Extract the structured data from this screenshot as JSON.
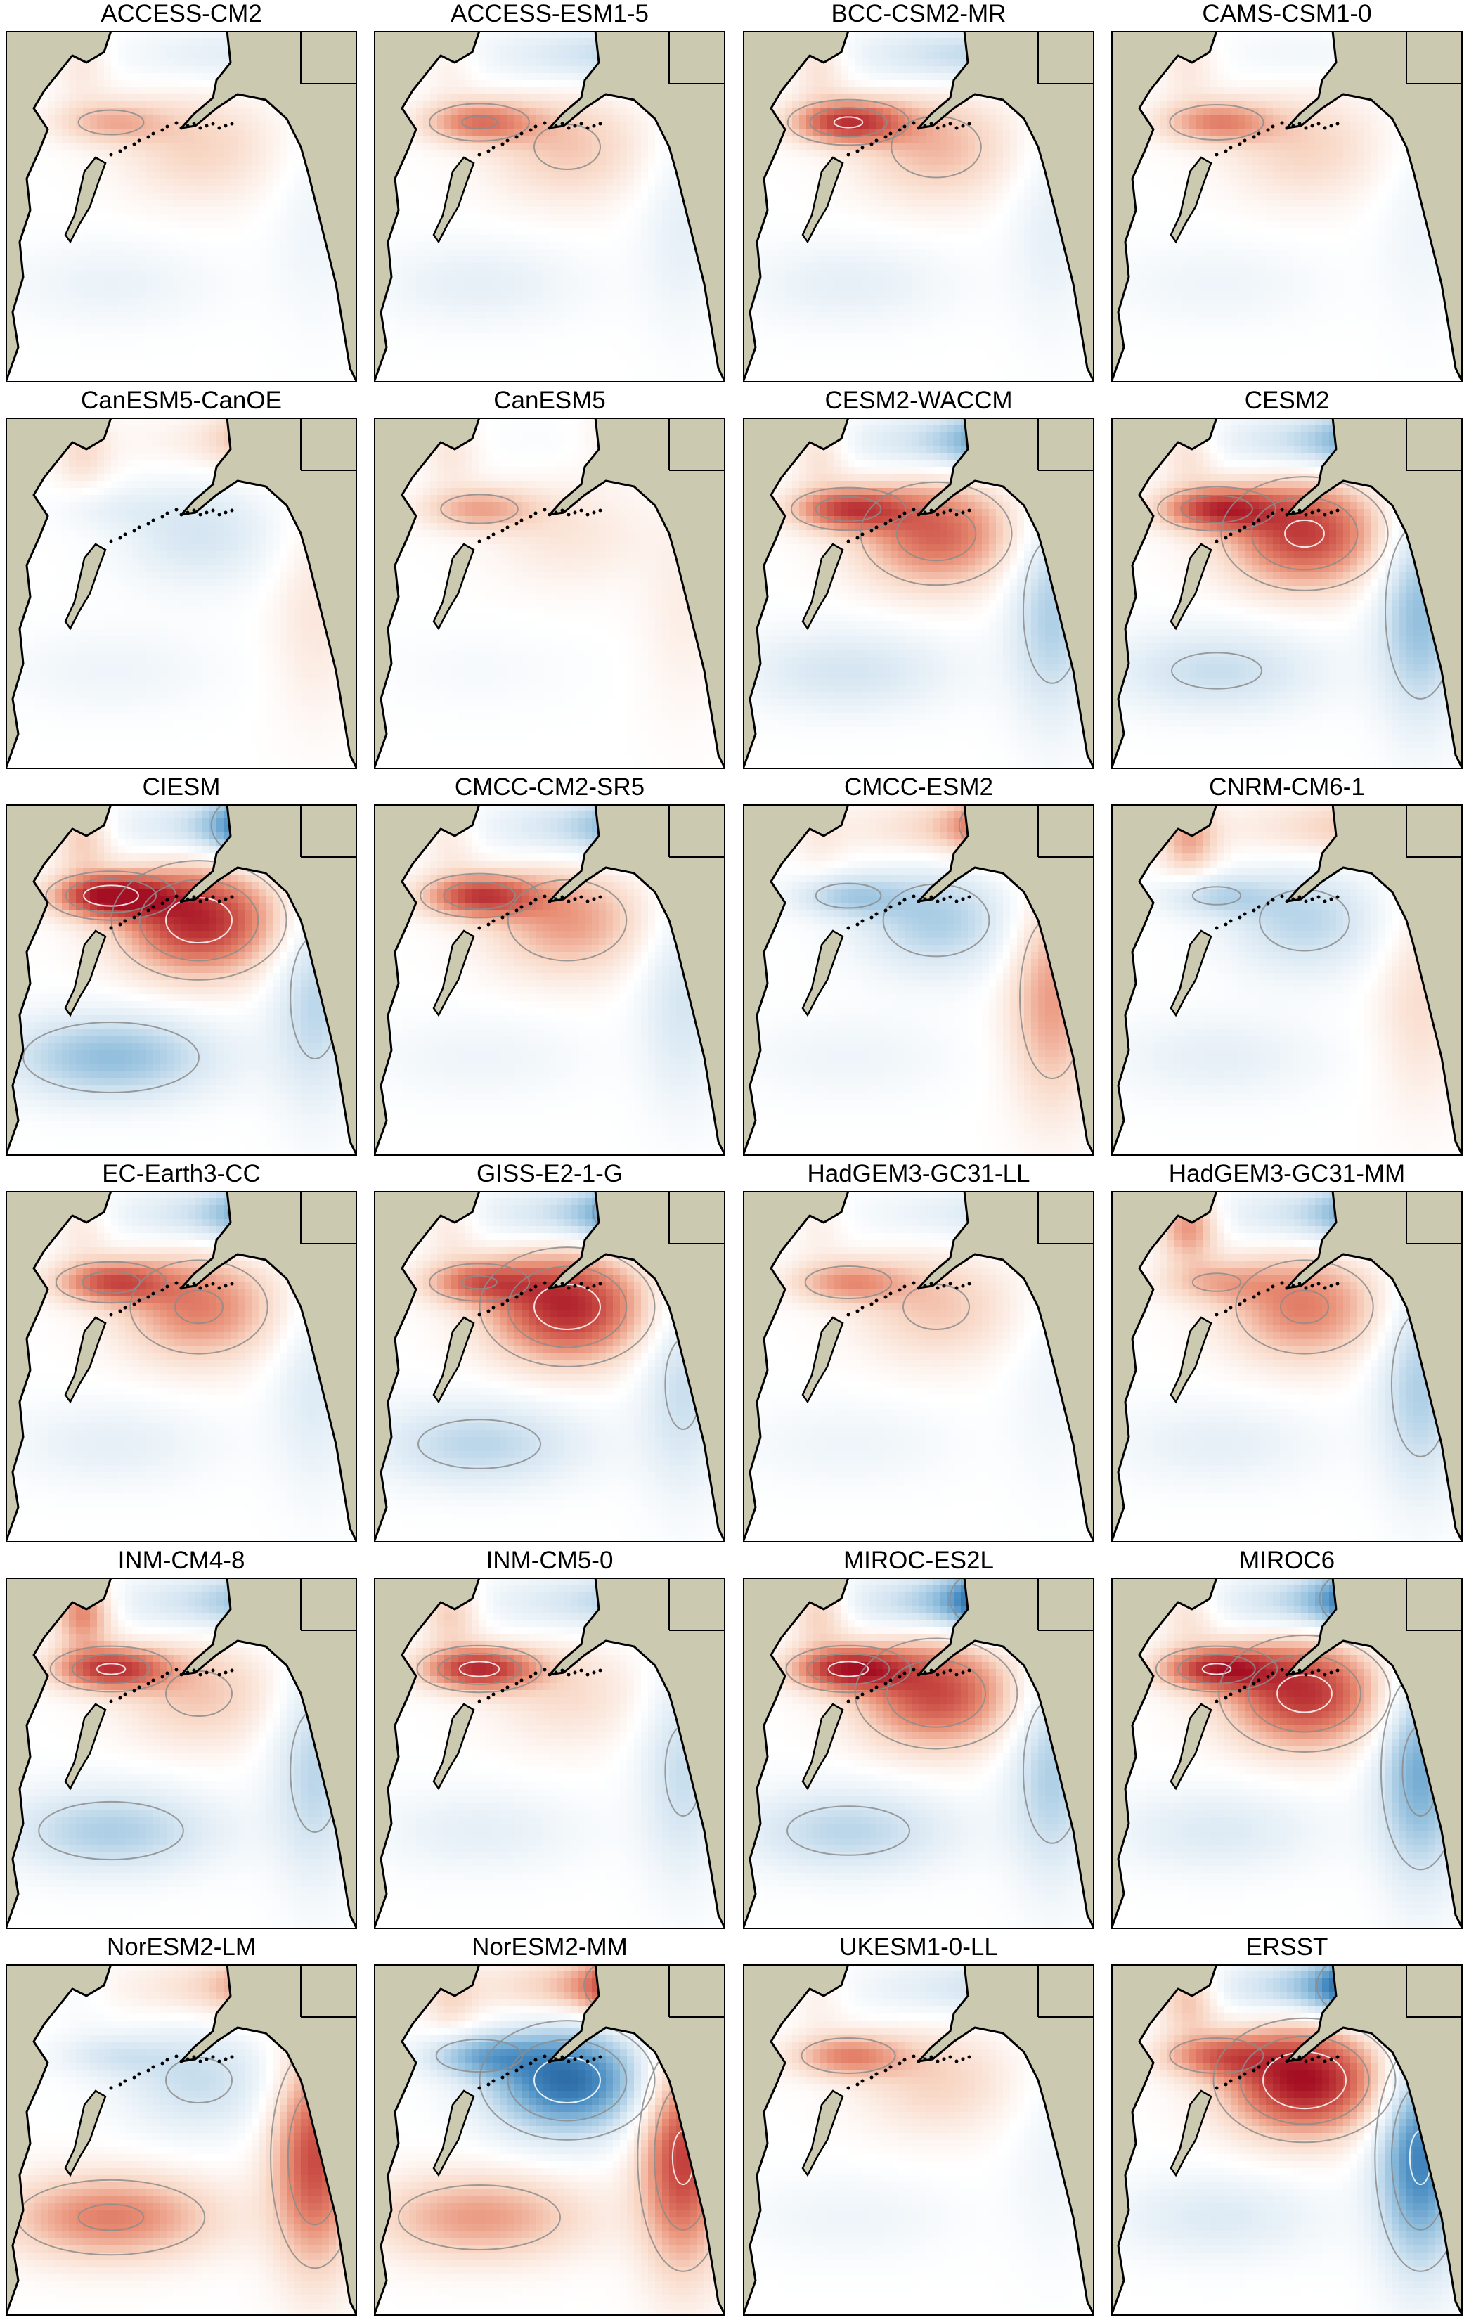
{
  "figure": {
    "colors": {
      "land": "#cbcab0",
      "coast": "#000000",
      "contour": "#8c8c8c",
      "frame": "#000000",
      "warm_max": "#a50f23",
      "cool_max": "#1f5c9a",
      "neutral": "#ffffff"
    },
    "panels": [
      {
        "title": "ACCESS-CM2",
        "kuroshio": 0.35,
        "center": 0.25,
        "north": -0.15,
        "southBand": -0.12,
        "east": -0.1,
        "alaska": -0.05,
        "okhotsk": 0.15
      },
      {
        "title": "ACCESS-ESM1-5",
        "kuroshio": 0.55,
        "center": 0.3,
        "north": -0.25,
        "southBand": -0.15,
        "east": -0.15,
        "alaska": -0.1,
        "okhotsk": 0.1
      },
      {
        "title": "BCC-CSM2-MR",
        "kuroshio": 0.8,
        "center": 0.35,
        "north": -0.3,
        "southBand": -0.15,
        "east": -0.15,
        "alaska": -0.05,
        "okhotsk": 0.2
      },
      {
        "title": "CAMS-CSM1-0",
        "kuroshio": 0.5,
        "center": 0.25,
        "north": -0.1,
        "southBand": -0.1,
        "east": -0.1,
        "alaska": 0.05,
        "okhotsk": 0.15
      },
      {
        "title": "CanESM5-CanOE",
        "kuroshio": -0.1,
        "center": -0.25,
        "north": 0.1,
        "southBand": -0.1,
        "east": 0.15,
        "alaska": 0.35,
        "okhotsk": 0.2
      },
      {
        "title": "CanESM5",
        "kuroshio": 0.4,
        "center": 0.15,
        "north": -0.05,
        "southBand": -0.05,
        "east": 0.1,
        "alaska": 0.2,
        "okhotsk": 0.15
      },
      {
        "title": "CESM2-WACCM",
        "kuroshio": 0.7,
        "center": 0.65,
        "north": -0.35,
        "southBand": -0.25,
        "east": -0.4,
        "alaska": -0.45,
        "okhotsk": 0.2
      },
      {
        "title": "CESM2",
        "kuroshio": 0.75,
        "center": 0.8,
        "north": -0.35,
        "southBand": -0.3,
        "east": -0.5,
        "alaska": -0.4,
        "okhotsk": 0.2
      },
      {
        "title": "CIESM",
        "kuroshio": 0.95,
        "center": 0.9,
        "north": -0.3,
        "southBand": -0.5,
        "east": -0.35,
        "alaska": -0.85,
        "okhotsk": 0.3
      },
      {
        "title": "CMCC-CM2-SR5",
        "kuroshio": 0.75,
        "center": 0.45,
        "north": -0.3,
        "southBand": -0.1,
        "east": -0.25,
        "alaska": -0.35,
        "okhotsk": 0.15
      },
      {
        "title": "CMCC-ESM2",
        "kuroshio": -0.35,
        "center": -0.4,
        "north": 0.25,
        "southBand": -0.1,
        "east": 0.45,
        "alaska": 0.55,
        "okhotsk": 0.1
      },
      {
        "title": "CNRM-CM6-1",
        "kuroshio": -0.3,
        "center": -0.35,
        "north": 0.2,
        "southBand": -0.15,
        "east": 0.2,
        "alaska": 0.15,
        "okhotsk": 0.4
      },
      {
        "title": "EC-Earth3-CC",
        "kuroshio": 0.65,
        "center": 0.55,
        "north": -0.3,
        "southBand": -0.15,
        "east": -0.2,
        "alaska": -0.45,
        "okhotsk": 0.15
      },
      {
        "title": "GISS-E2-1-G",
        "kuroshio": 0.55,
        "center": 0.9,
        "north": -0.35,
        "southBand": -0.35,
        "east": -0.3,
        "alaska": -0.5,
        "okhotsk": 0.15
      },
      {
        "title": "HadGEM3-GC31-LL",
        "kuroshio": 0.45,
        "center": 0.3,
        "north": -0.15,
        "southBand": -0.1,
        "east": -0.1,
        "alaska": -0.1,
        "okhotsk": 0.1
      },
      {
        "title": "HadGEM3-GC31-MM",
        "kuroshio": 0.3,
        "center": 0.55,
        "north": -0.3,
        "southBand": -0.15,
        "east": -0.4,
        "alaska": -0.45,
        "okhotsk": 0.5
      },
      {
        "title": "INM-CM4-8",
        "kuroshio": 0.8,
        "center": 0.3,
        "north": -0.3,
        "southBand": -0.4,
        "east": -0.35,
        "alaska": -0.25,
        "okhotsk": 0.55
      },
      {
        "title": "INM-CM5-0",
        "kuroshio": 0.85,
        "center": 0.2,
        "north": -0.25,
        "southBand": -0.15,
        "east": -0.3,
        "alaska": -0.15,
        "okhotsk": 0.3
      },
      {
        "title": "MIROC-ES2L",
        "kuroshio": 0.85,
        "center": 0.75,
        "north": -0.45,
        "southBand": -0.35,
        "east": -0.4,
        "alaska": -0.8,
        "okhotsk": 0.3
      },
      {
        "title": "MIROC6",
        "kuroshio": 0.8,
        "center": 0.85,
        "north": -0.4,
        "southBand": -0.2,
        "east": -0.6,
        "alaska": -0.75,
        "okhotsk": 0.2
      },
      {
        "title": "NorESM2-LM",
        "kuroshio": -0.2,
        "center": -0.3,
        "north": 0.2,
        "southBand": 0.55,
        "east": 0.75,
        "alaska": 0.35,
        "okhotsk": -0.05
      },
      {
        "title": "NorESM2-MM",
        "kuroshio": -0.45,
        "center": -0.9,
        "north": 0.35,
        "southBand": 0.45,
        "east": 0.8,
        "alaska": 0.7,
        "okhotsk": 0.2
      },
      {
        "title": "UKESM1-0-LL",
        "kuroshio": 0.5,
        "center": 0.25,
        "north": -0.2,
        "southBand": -0.1,
        "east": -0.1,
        "alaska": -0.1,
        "okhotsk": 0.1
      },
      {
        "title": "ERSST",
        "kuroshio": 0.5,
        "center": 1.0,
        "north": -0.45,
        "southBand": -0.2,
        "east": -0.8,
        "alaska": -0.85,
        "okhotsk": 0.35
      }
    ]
  }
}
